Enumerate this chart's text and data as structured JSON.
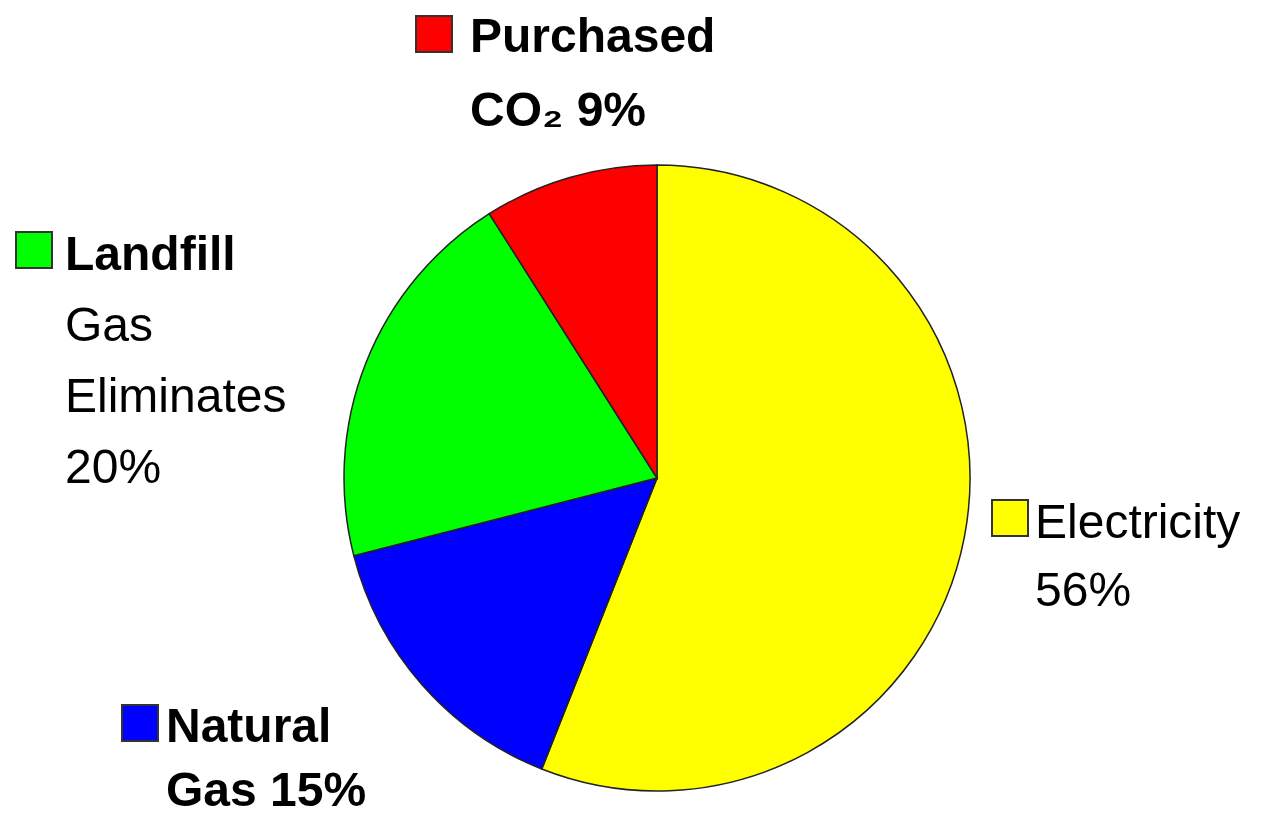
{
  "chart_data": {
    "type": "pie",
    "categories": [
      "Electricity",
      "Natural Gas",
      "Landfill Gas Eliminates",
      "Purchased CO₂"
    ],
    "values": [
      56,
      15,
      20,
      9
    ],
    "value_labels": [
      "56%",
      "15%",
      "20%",
      "9%"
    ],
    "colors": [
      "#ffff00",
      "#0000ff",
      "#00ff00",
      "#ff0000"
    ],
    "legend": "right"
  }
}
